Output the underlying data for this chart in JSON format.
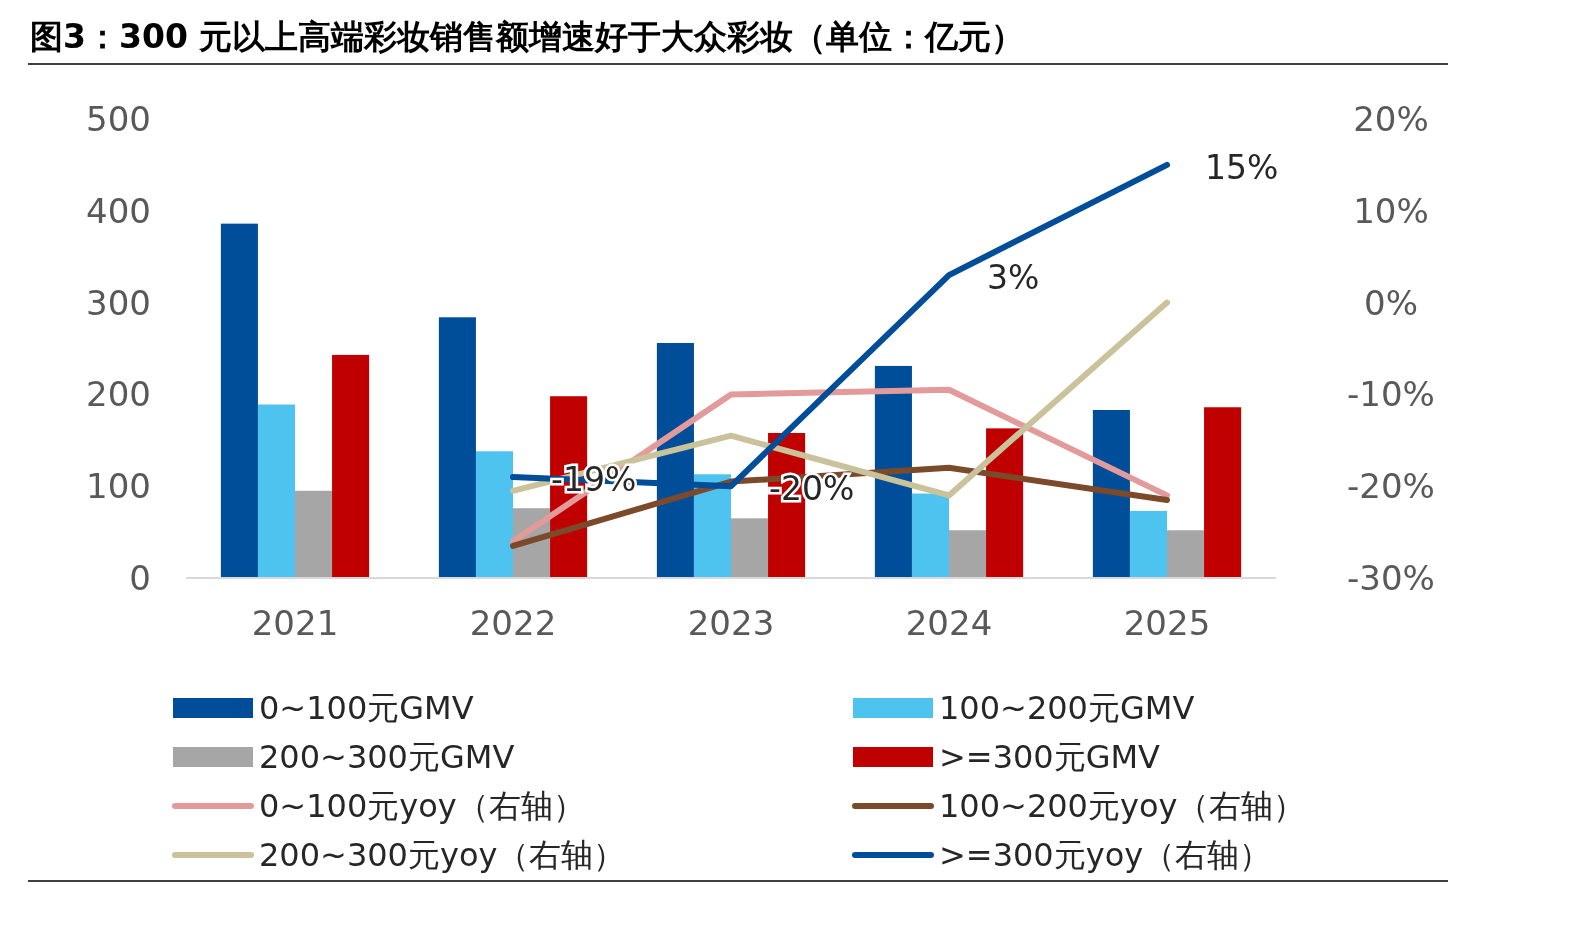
{
  "chart_data": {
    "type": "bar",
    "title": "图3：300 元以上高端彩妆销售额增速好于大众彩妆（单位：亿元）",
    "categories": [
      "2021",
      "2022",
      "2023",
      "2024",
      "2025"
    ],
    "series": [
      {
        "name": "0~100元GMV",
        "color": "#004d99",
        "values": [
          386,
          284,
          256,
          231,
          183
        ]
      },
      {
        "name": "100~200元GMV",
        "color": "#4fc3f0",
        "values": [
          189,
          138,
          113,
          92,
          73
        ]
      },
      {
        "name": "200~300元GMV",
        "color": "#a6a6a6",
        "values": [
          95,
          76,
          65,
          52,
          52
        ]
      },
      {
        "name": ">=300元GMV",
        "color": "#c00000",
        "values": [
          243,
          198,
          158,
          163,
          186
        ]
      },
      {
        "name": "0~100元yoy（右轴）",
        "type": "line",
        "axis": "y2",
        "color": "#e39a9a",
        "values": [
          null,
          -26,
          -10,
          -9.5,
          -21
        ]
      },
      {
        "name": "100~200元yoy（右轴）",
        "type": "line",
        "axis": "y2",
        "color": "#7b4a2a",
        "values": [
          null,
          -26.5,
          -19.5,
          -18,
          -21.5
        ]
      },
      {
        "name": "200~300元yoy（右轴）",
        "type": "line",
        "axis": "y2",
        "color": "#c9c29a",
        "values": [
          null,
          -20.5,
          -14.5,
          -21,
          0
        ]
      },
      {
        "name": ">=300元yoy（右轴）",
        "type": "line",
        "axis": "y2",
        "color": "#004d99",
        "values": [
          null,
          -19,
          -20,
          3,
          15
        ],
        "value_labels": [
          null,
          "-19%",
          "-20%",
          "3%",
          "15%"
        ]
      }
    ],
    "ylim": [
      0,
      500
    ],
    "yticks": [
      0,
      100,
      200,
      300,
      400,
      500
    ],
    "y2lim": [
      -30,
      20
    ],
    "y2ticks": [
      {
        "value": -30,
        "label": "-30%"
      },
      {
        "value": -20,
        "label": "-20%"
      },
      {
        "value": -10,
        "label": "-10%"
      },
      {
        "value": 0,
        "label": "0%"
      },
      {
        "value": 10,
        "label": "10%"
      },
      {
        "value": 20,
        "label": "20%"
      }
    ],
    "grid": false,
    "legend": "bottom",
    "marker": "none",
    "line_style": "solid"
  }
}
